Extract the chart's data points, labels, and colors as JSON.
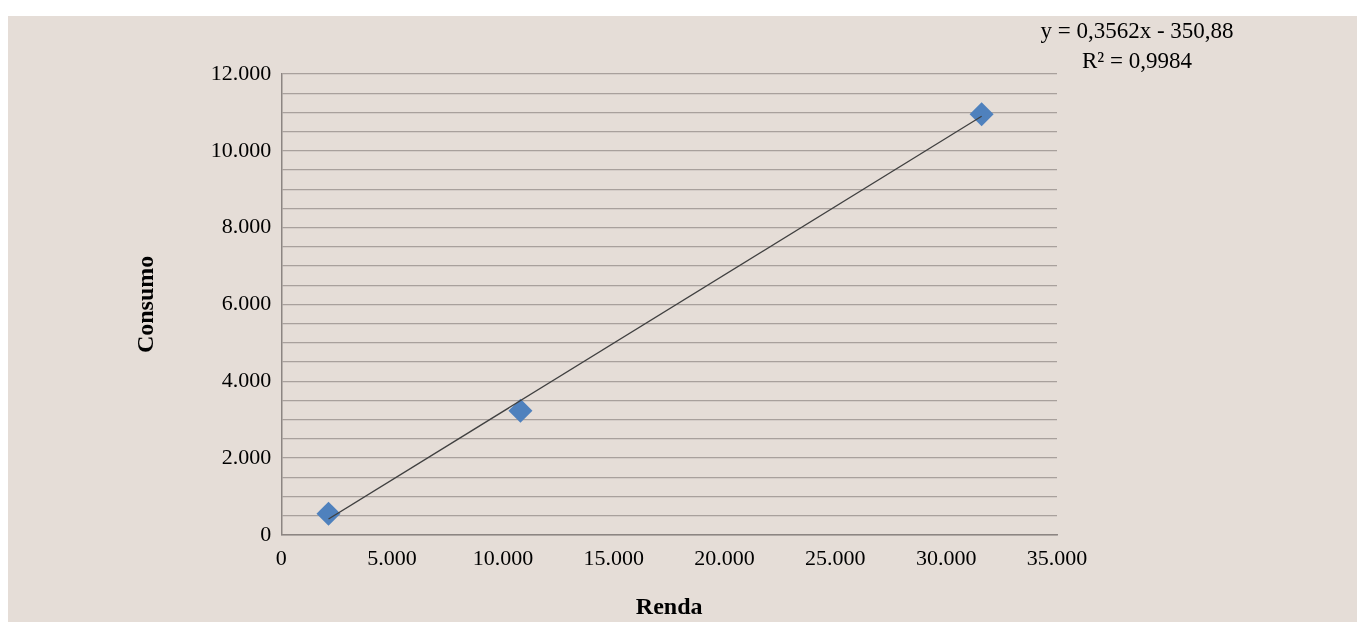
{
  "chart_data": {
    "type": "scatter",
    "xlabel": "Renda",
    "ylabel": "Consumo",
    "annotations": [
      "y = 0,3562x - 350,88",
      "R² = 0,9984"
    ],
    "series": [
      {
        "color": "#4f81bd",
        "x": [
          2130,
          10790,
          31600
        ],
        "values": [
          550,
          3230,
          10950
        ],
        "marker": "diamond"
      },
      {
        "type": "line",
        "color": "#404040",
        "x": [
          2130,
          31600
        ],
        "values": [
          410,
          10900
        ],
        "marker": "none",
        "line_style": "solid"
      }
    ],
    "xlim": [
      0,
      35000
    ],
    "xticks": [
      {
        "value": 0,
        "label": "0"
      },
      {
        "value": 5000,
        "label": "5.000"
      },
      {
        "value": 10000,
        "label": "10.000"
      },
      {
        "value": 15000,
        "label": "15.000"
      },
      {
        "value": 20000,
        "label": "20.000"
      },
      {
        "value": 25000,
        "label": "25.000"
      },
      {
        "value": 30000,
        "label": "30.000"
      },
      {
        "value": 35000,
        "label": "35.000"
      }
    ],
    "ylim": [
      0,
      12000
    ],
    "yticks": [
      {
        "value": 0,
        "label": "0"
      },
      {
        "value": 500,
        "label": null
      },
      {
        "value": 1000,
        "label": null
      },
      {
        "value": 1500,
        "label": null
      },
      {
        "value": 2000,
        "label": "2.000"
      },
      {
        "value": 2500,
        "label": null
      },
      {
        "value": 3000,
        "label": null
      },
      {
        "value": 3500,
        "label": null
      },
      {
        "value": 4000,
        "label": "4.000"
      },
      {
        "value": 4500,
        "label": null
      },
      {
        "value": 5000,
        "label": null
      },
      {
        "value": 5500,
        "label": null
      },
      {
        "value": 6000,
        "label": "6.000"
      },
      {
        "value": 6500,
        "label": null
      },
      {
        "value": 7000,
        "label": null
      },
      {
        "value": 7500,
        "label": null
      },
      {
        "value": 8000,
        "label": "8.000"
      },
      {
        "value": 8500,
        "label": null
      },
      {
        "value": 9000,
        "label": null
      },
      {
        "value": 9500,
        "label": null
      },
      {
        "value": 10000,
        "label": "10.000"
      },
      {
        "value": 10500,
        "label": null
      },
      {
        "value": 11000,
        "label": null
      },
      {
        "value": 11500,
        "label": null
      },
      {
        "value": 12000,
        "label": "12.000"
      }
    ],
    "grid": "y",
    "legend": false
  }
}
